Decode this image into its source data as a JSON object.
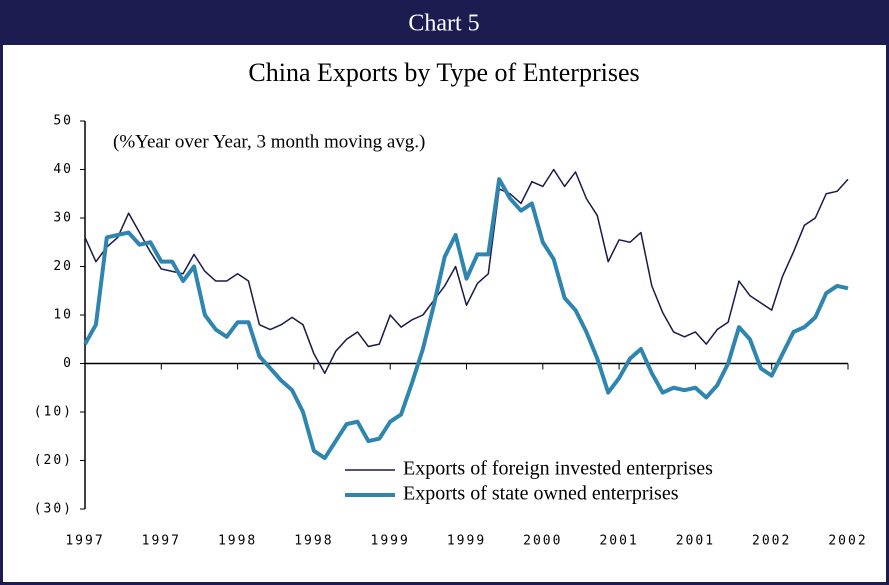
{
  "chart_data": {
    "type": "line",
    "header": "Chart 5",
    "title": "China Exports by Type of Enterprises",
    "annotation": "(%Year over Year, 3 month moving avg.)",
    "categories": [
      "1997",
      null,
      null,
      null,
      null,
      null,
      null,
      "1997",
      null,
      null,
      null,
      null,
      null,
      null,
      "1998",
      null,
      null,
      null,
      null,
      null,
      null,
      "1998",
      null,
      null,
      null,
      null,
      null,
      null,
      "1999",
      null,
      null,
      null,
      null,
      null,
      null,
      "1999",
      null,
      null,
      null,
      null,
      null,
      null,
      "2000",
      null,
      null,
      null,
      null,
      null,
      null,
      "2001",
      null,
      null,
      null,
      null,
      null,
      null,
      "2001",
      null,
      null,
      null,
      null,
      null,
      null,
      "2002",
      null,
      null,
      null,
      null,
      null,
      null,
      "2002"
    ],
    "series": [
      {
        "name": "Exports of foreign invested enterprises",
        "color": "#1a1a4a",
        "width": 1.5,
        "values": [
          26,
          21,
          24,
          26,
          31,
          27,
          23,
          19.5,
          19,
          18.5,
          22.5,
          19,
          17,
          17,
          18.5,
          17,
          8,
          7,
          8,
          9.5,
          8,
          2,
          -2,
          2.5,
          5,
          6.5,
          3.5,
          4,
          10,
          7.5,
          9,
          10,
          13,
          16,
          20,
          12,
          16.5,
          18.5,
          36,
          35,
          33,
          37.5,
          36.5,
          40,
          36.5,
          39.5,
          34,
          30.5,
          21,
          25.5,
          25,
          27,
          16,
          10.5,
          6.5,
          5.5,
          6.5,
          4,
          7,
          8.5,
          17,
          14,
          12.5,
          11,
          18,
          23,
          28.5,
          30,
          35,
          35.5,
          38
        ]
      },
      {
        "name": "Exports of state owned enterprises",
        "color": "#2e86b0",
        "width": 4,
        "values": [
          4,
          8,
          26,
          26.5,
          27,
          24.5,
          25,
          21,
          21,
          17,
          20,
          10,
          7,
          5.5,
          8.5,
          8.5,
          1.5,
          -1,
          -3.5,
          -5.5,
          -10,
          -18,
          -19.5,
          -16,
          -12.5,
          -12,
          -16,
          -15.5,
          -12,
          -10.5,
          -4,
          3,
          12,
          22,
          26.5,
          17.5,
          22.5,
          22.5,
          38,
          34,
          31.5,
          33,
          25,
          21.5,
          13.5,
          11,
          6.5,
          1,
          -6,
          -3,
          1,
          3,
          -2,
          -6,
          -5,
          -5.5,
          -5,
          -7,
          -4.5,
          0,
          7.5,
          5,
          -1,
          -2.5,
          2,
          6.5,
          7.5,
          9.5,
          14.5,
          16,
          15.5
        ]
      }
    ],
    "ylim": [
      -30,
      50
    ],
    "yticks": [
      50,
      40,
      30,
      20,
      10,
      0,
      {
        "value": -10,
        "label": "(10)"
      },
      {
        "value": -20,
        "label": "(20)"
      },
      {
        "value": -30,
        "label": "(30)"
      }
    ],
    "grid": false,
    "legend": "lower right"
  }
}
